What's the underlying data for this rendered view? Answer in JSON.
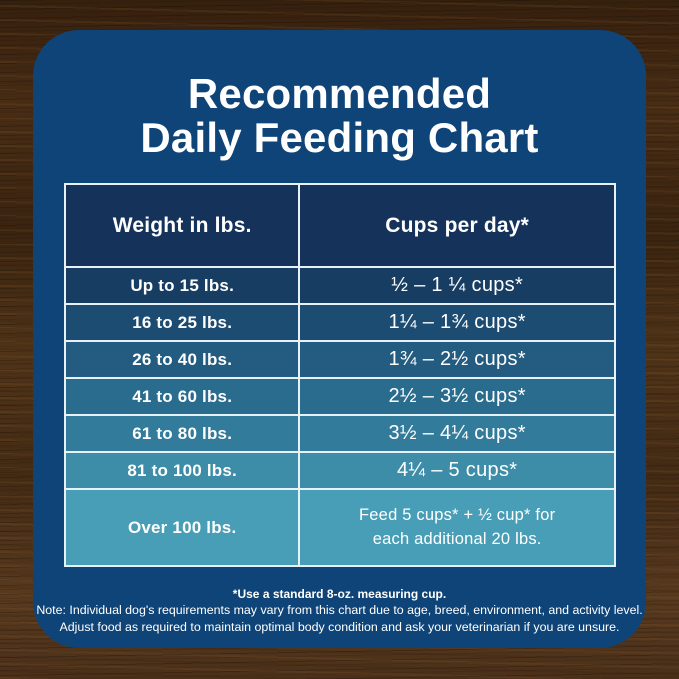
{
  "colors": {
    "panel": "#0F4478",
    "table_border": "#E7F2F8",
    "header_bg": "#14325A",
    "text": "#FFFFFF",
    "row_gradient_start": "#173D62",
    "row_gradient_end": "#479EB6"
  },
  "title": {
    "line1": "Recommended",
    "line2": "Daily Feeding Chart"
  },
  "table": {
    "headers": [
      "Weight in lbs.",
      "Cups per day*"
    ],
    "row_colors": [
      "#173D62",
      "#1D4C72",
      "#235C80",
      "#2A6C8E",
      "#327B9B",
      "#3D8DA8",
      "#479EB6"
    ],
    "rows": [
      {
        "weight": "Up to 15 lbs.",
        "cups": "½ – 1 ¼ cups*"
      },
      {
        "weight": "16 to 25 lbs.",
        "cups": "1¼ – 1¾  cups*"
      },
      {
        "weight": "26 to 40 lbs.",
        "cups": "1¾ – 2½ cups*"
      },
      {
        "weight": "41 to 60 lbs.",
        "cups": "2½ – 3½ cups*"
      },
      {
        "weight": "61 to 80 lbs.",
        "cups": "3½ – 4¼ cups*"
      },
      {
        "weight": "81 to 100 lbs.",
        "cups": "4¼ – 5 cups*"
      },
      {
        "weight": "Over 100 lbs.",
        "cups": "Feed 5 cups* + ½ cup* for\neach additional 20 lbs."
      }
    ]
  },
  "footnote": {
    "measuring_cup": "*Use a standard 8-oz. measuring cup.",
    "note_line1": "Note: Individual dog's requirements may vary from this chart due to age, breed, environment, and activity level.",
    "note_line2": "Adjust food as required to maintain optimal body condition and ask your veterinarian if you are unsure."
  },
  "chart_data": {
    "type": "table",
    "title": "Recommended Daily Feeding Chart",
    "columns": [
      "Weight in lbs.",
      "Cups per day*"
    ],
    "rows": [
      [
        "Up to 15 lbs.",
        "½ – 1 ¼ cups*"
      ],
      [
        "16 to 25 lbs.",
        "1¼ – 1¾ cups*"
      ],
      [
        "26 to 40 lbs.",
        "1¾ – 2½ cups*"
      ],
      [
        "41 to 60 lbs.",
        "2½ – 3½ cups*"
      ],
      [
        "61 to 80 lbs.",
        "3½ – 4¼ cups*"
      ],
      [
        "81 to 100 lbs.",
        "4¼ – 5 cups*"
      ],
      [
        "Over 100 lbs.",
        "Feed 5 cups* + ½ cup* for each additional 20 lbs."
      ]
    ],
    "footnotes": [
      "*Use a standard 8-oz. measuring cup.",
      "Note: Individual dog's requirements may vary from this chart due to age, breed, environment, and activity level.",
      "Adjust food as required to maintain optimal body condition and ask your veterinarian if you are unsure."
    ]
  }
}
